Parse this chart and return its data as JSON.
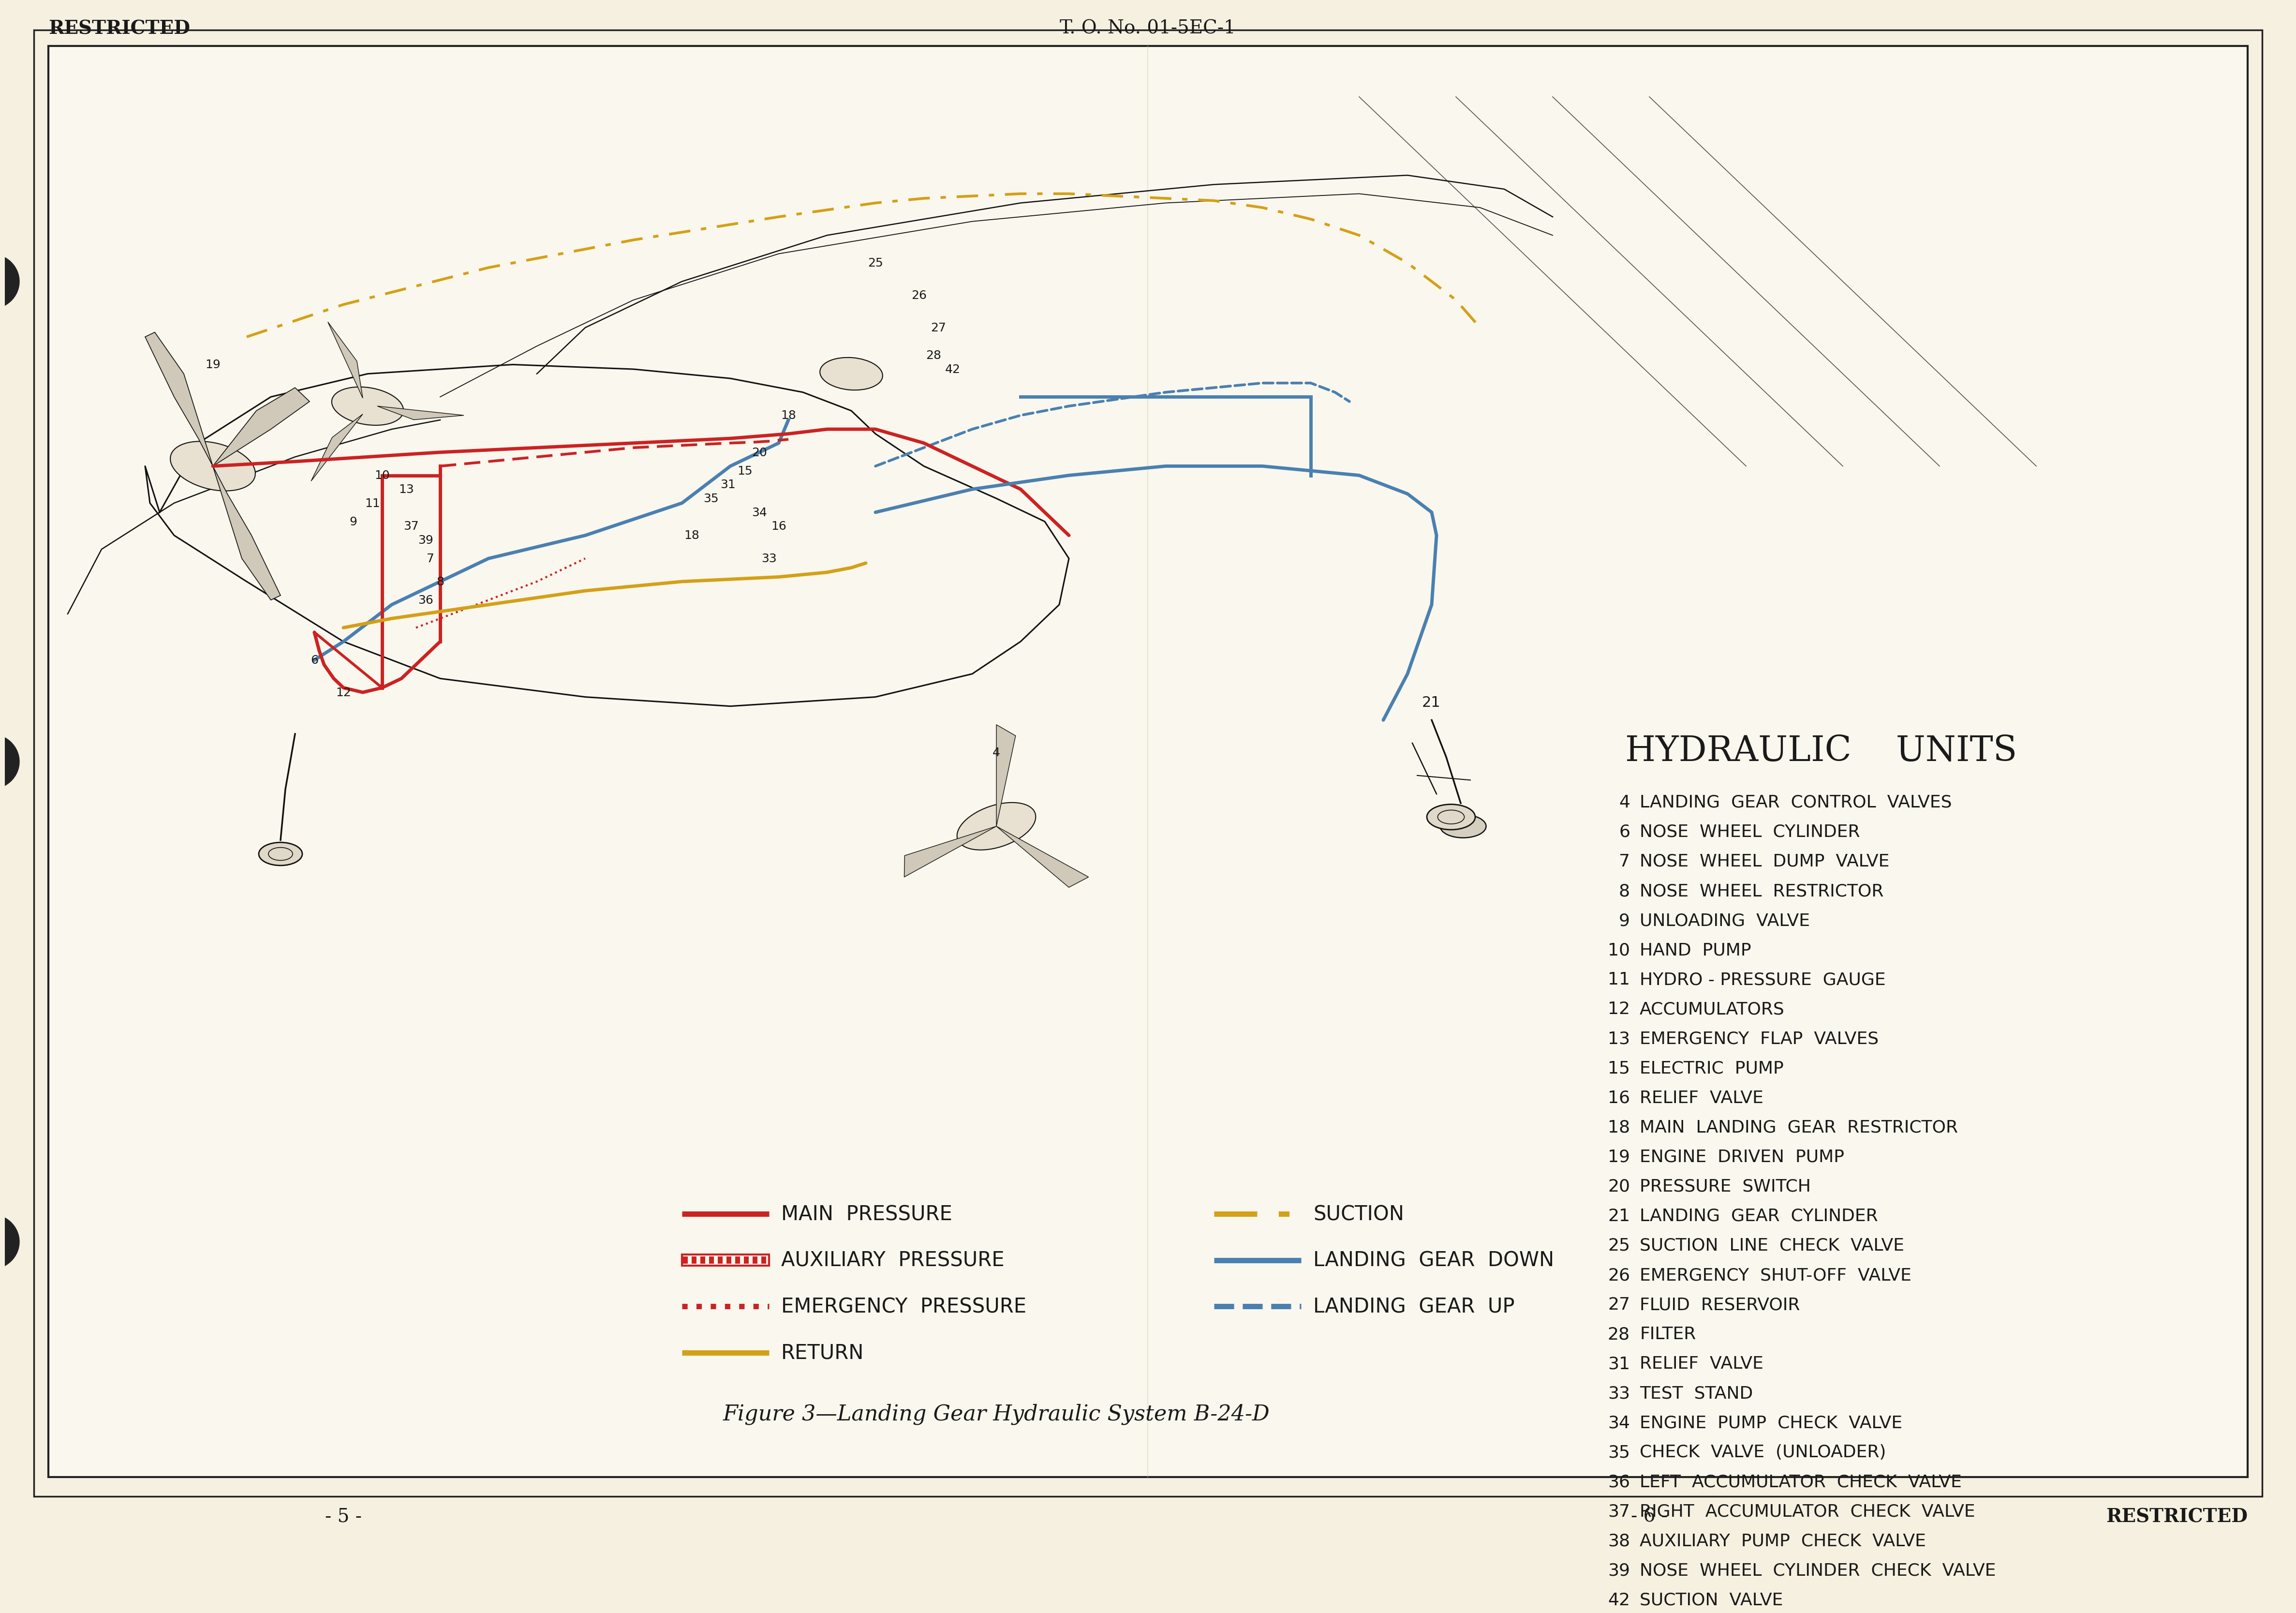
{
  "page_bg": "#f5f0e0",
  "border_color": "#222222",
  "text_color": "#1a1a1a",
  "header_left": "RESTRICTED",
  "header_center": "T. O. No. 01-5EC-1",
  "footer_left": "- 5 -",
  "footer_right": "- 6 -",
  "footer_far_right": "RESTRICTED",
  "figure_caption": "Figure 3—Landing Gear Hydraulic System B-24-D",
  "hydraulic_title": "HYDRAULIC    UNITS",
  "hydraulic_units": [
    [
      "4",
      "LANDING  GEAR  CONTROL  VALVES"
    ],
    [
      "6",
      "NOSE  WHEEL  CYLINDER"
    ],
    [
      "7",
      "NOSE  WHEEL  DUMP  VALVE"
    ],
    [
      "8",
      "NOSE  WHEEL  RESTRICTOR"
    ],
    [
      "9",
      "UNLOADING  VALVE"
    ],
    [
      "10",
      "HAND  PUMP"
    ],
    [
      "11",
      "HYDRO - PRESSURE  GAUGE"
    ],
    [
      "12",
      "ACCUMULATORS"
    ],
    [
      "13",
      "EMERGENCY  FLAP  VALVES"
    ],
    [
      "15",
      "ELECTRIC  PUMP"
    ],
    [
      "16",
      "RELIEF  VALVE"
    ],
    [
      "18",
      "MAIN  LANDING  GEAR  RESTRICTOR"
    ],
    [
      "19",
      "ENGINE  DRIVEN  PUMP"
    ],
    [
      "20",
      "PRESSURE  SWITCH"
    ],
    [
      "21",
      "LANDING  GEAR  CYLINDER"
    ],
    [
      "25",
      "SUCTION  LINE  CHECK  VALVE"
    ],
    [
      "26",
      "EMERGENCY  SHUT-OFF  VALVE"
    ],
    [
      "27",
      "FLUID  RESERVOIR"
    ],
    [
      "28",
      "FILTER"
    ],
    [
      "31",
      "RELIEF  VALVE"
    ],
    [
      "33",
      "TEST  STAND"
    ],
    [
      "34",
      "ENGINE  PUMP  CHECK  VALVE"
    ],
    [
      "35",
      "CHECK  VALVE  (UNLOADER)"
    ],
    [
      "36",
      "LEFT  ACCUMULATOR  CHECK  VALVE"
    ],
    [
      "37",
      "RIGHT  ACCUMULATOR  CHECK  VALVE"
    ],
    [
      "38",
      "AUXILIARY  PUMP  CHECK  VALVE"
    ],
    [
      "39",
      "NOSE  WHEEL  CYLINDER  CHECK  VALVE"
    ],
    [
      "42",
      "SUCTION  VALVE"
    ]
  ],
  "main_pressure_color": "#cc2222",
  "aux_pressure_color": "#cc2222",
  "emergency_color": "#cc2222",
  "return_color": "#d4a017",
  "suction_color": "#d4a017",
  "gear_down_color": "#4a80b0",
  "gear_up_color": "#4a80b0",
  "line_color": "#111111",
  "diagram_bg": "#faf7ee"
}
